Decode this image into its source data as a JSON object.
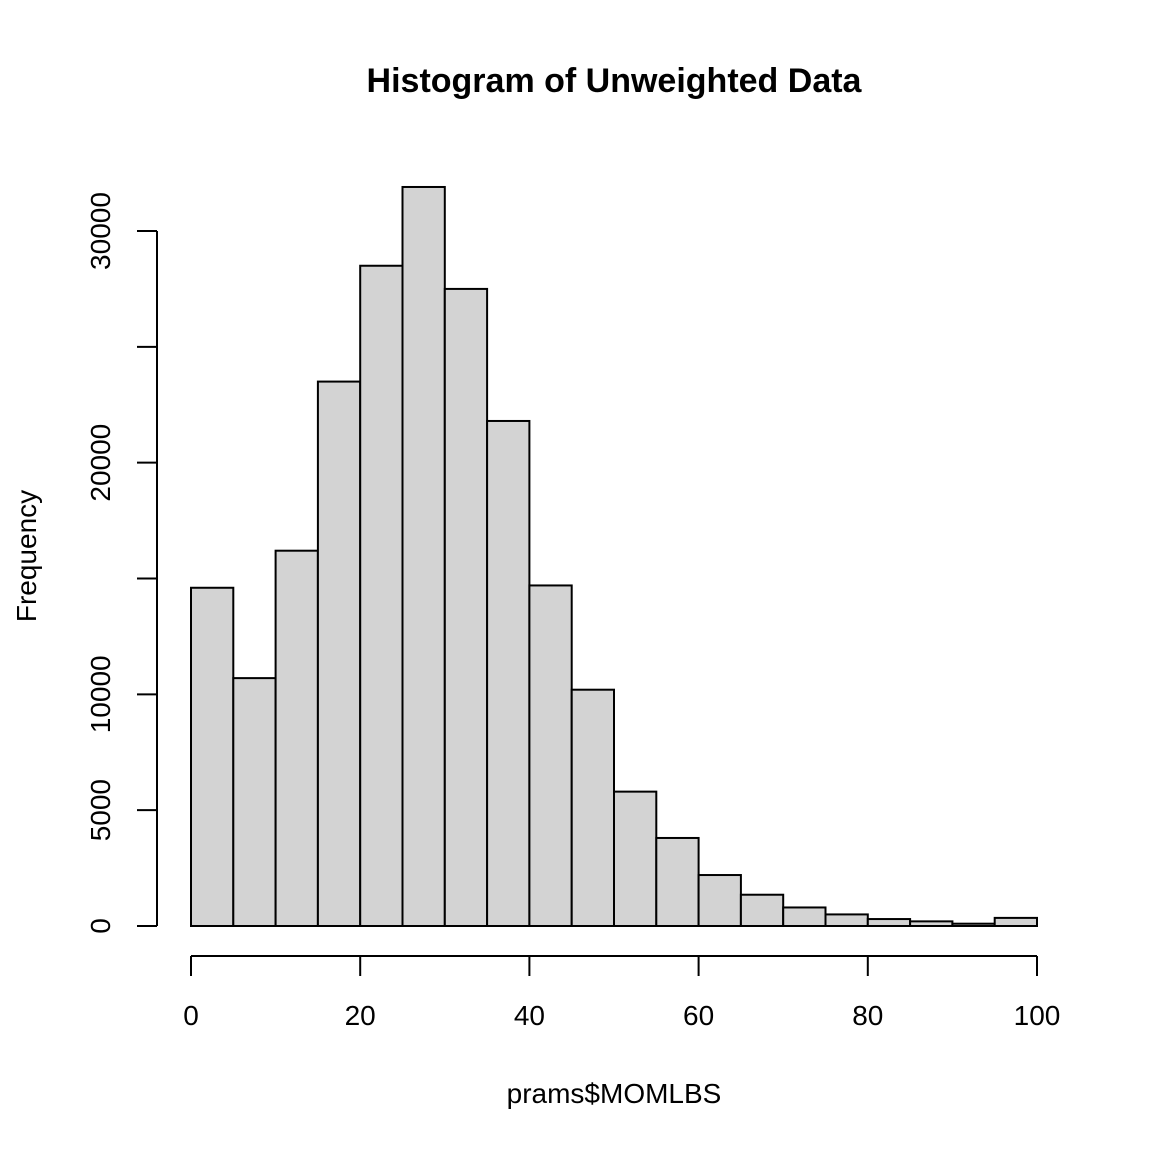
{
  "chart_data": {
    "type": "bar",
    "title": "Histogram of Unweighted Data",
    "xlabel": "prams$MOMLBS",
    "ylabel": "Frequency",
    "bin_edges": [
      0,
      5,
      10,
      15,
      20,
      25,
      30,
      35,
      40,
      45,
      50,
      55,
      60,
      65,
      70,
      75,
      80,
      85,
      90,
      95,
      100
    ],
    "values": [
      14600,
      10700,
      16200,
      23500,
      28500,
      31900,
      27500,
      21800,
      14700,
      10200,
      5800,
      3800,
      2200,
      1350,
      800,
      500,
      300,
      200,
      100,
      350
    ],
    "xlim": [
      0,
      100
    ],
    "ylim": [
      0,
      32000
    ],
    "x_ticks": [
      "0",
      "20",
      "40",
      "60",
      "80",
      "100"
    ],
    "y_ticks": [
      "0",
      "5000",
      "10000",
      "20000",
      "30000"
    ],
    "colors": {
      "bar_fill": "#d3d3d3",
      "bar_stroke": "#000000"
    },
    "grid": false,
    "legend": "none"
  }
}
